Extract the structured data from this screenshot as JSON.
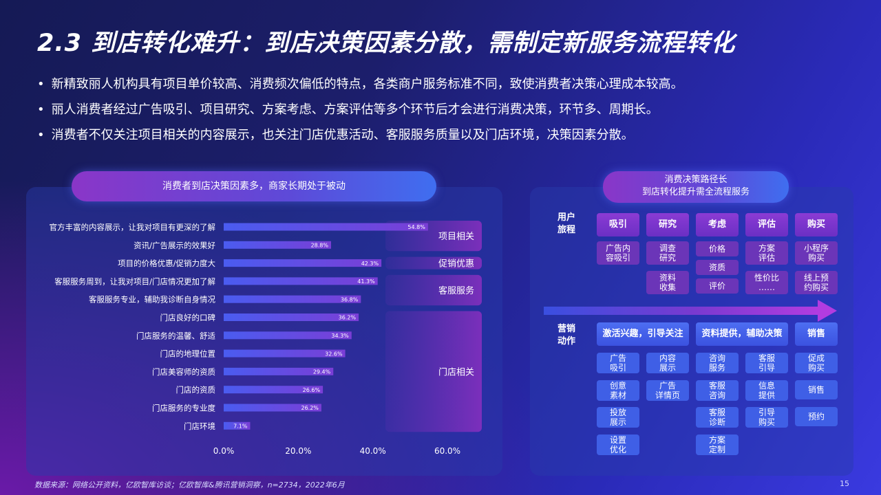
{
  "title": "2.3 到店转化难升：到店决策因素分散，需制定新服务流程转化",
  "bullets": [
    "新精致丽人机构具有项目单价较高、消费频次偏低的特点，各类商户服务标准不同，致使消费者决策心理成本较高。",
    "丽人消费者经过广告吸引、项目研究、方案考虑、方案评估等多个环节后才会进行消费决策，环节多、周期长。",
    "消费者不仅关注项目相关的内容展示，也关注门店优惠活动、客服服务质量以及门店环境，决策因素分散。"
  ],
  "left_pill": "消费者到店决策因素多，商家长期处于被动",
  "right_pill": {
    "line1": "消费决策路径长",
    "line2": "到店转化提升需全流程服务"
  },
  "footer": "数据来源：网络公开资料，亿欧智库访谈；亿欧智库&腾讯营销洞察，n=2734，2022年6月",
  "page_number": "15",
  "chart_data": {
    "type": "bar",
    "orientation": "horizontal",
    "categories": [
      "官方丰富的内容展示，让我对项目有更深的了解",
      "资讯/广告展示的效果好",
      "项目的价格优惠/促销力度大",
      "客服服务周到，让我对项目/门店情况更加了解",
      "客服服务专业，辅助我诊断自身情况",
      "门店良好的口碑",
      "门店服务的温馨、舒适",
      "门店的地理位置",
      "门店美容师的资质",
      "门店的资质",
      "门店服务的专业度",
      "门店环境"
    ],
    "values": [
      54.8,
      28.8,
      42.3,
      41.3,
      36.8,
      36.2,
      34.3,
      32.6,
      29.4,
      26.6,
      26.2,
      7.1
    ],
    "value_labels": [
      "54.8%",
      "28.8%",
      "42.3%",
      "41.3%",
      "36.8%",
      "36.2%",
      "34.3%",
      "32.6%",
      "29.4%",
      "26.6%",
      "26.2%",
      "7.1%"
    ],
    "xticks": [
      "0.0%",
      "20.0%",
      "40.0%",
      "60.0%"
    ],
    "xlim": [
      0,
      60
    ],
    "groups": [
      {
        "label": "项目相关",
        "from": 0,
        "to": 1
      },
      {
        "label": "促销优惠",
        "from": 2,
        "to": 2
      },
      {
        "label": "客服服务",
        "from": 3,
        "to": 4
      },
      {
        "label": "门店相关",
        "from": 5,
        "to": 11
      }
    ],
    "bar_color": "#4a5cf0",
    "bar_color_end": "#7a3ed6"
  },
  "journey": {
    "user_label": "用户\n旅程",
    "stages": [
      "吸引",
      "研究",
      "考虑",
      "评估",
      "购买"
    ],
    "user_cells": [
      [
        "广告内\n容吸引"
      ],
      [
        "调查\n研究",
        "资料\n收集"
      ],
      [
        "价格",
        "资质",
        "评价"
      ],
      [
        "方案\n评估",
        "性价比\n……"
      ],
      [
        "小程序\n购买",
        "线上预\n约购买"
      ]
    ],
    "marketing_label": "营销\n动作",
    "actions": [
      "激活兴趣，引导关注",
      "资料提供，辅助决策",
      "销售"
    ],
    "action_cells": [
      [
        "广告\n吸引",
        "创意\n素材",
        "投放\n展示",
        "设置\n优化"
      ],
      [
        "内容\n展示",
        "广告\n详情页"
      ],
      [
        "咨询\n服务",
        "客服\n咨询",
        "客服\n诊断",
        "方案\n定制"
      ],
      [
        "客服\n引导",
        "信息\n提供",
        "引导\n购买"
      ],
      [
        "促成\n购买",
        "销售",
        "预约"
      ]
    ]
  },
  "colors": {
    "accent_purple": "#8b3bd4",
    "accent_blue": "#3f5fe6"
  }
}
